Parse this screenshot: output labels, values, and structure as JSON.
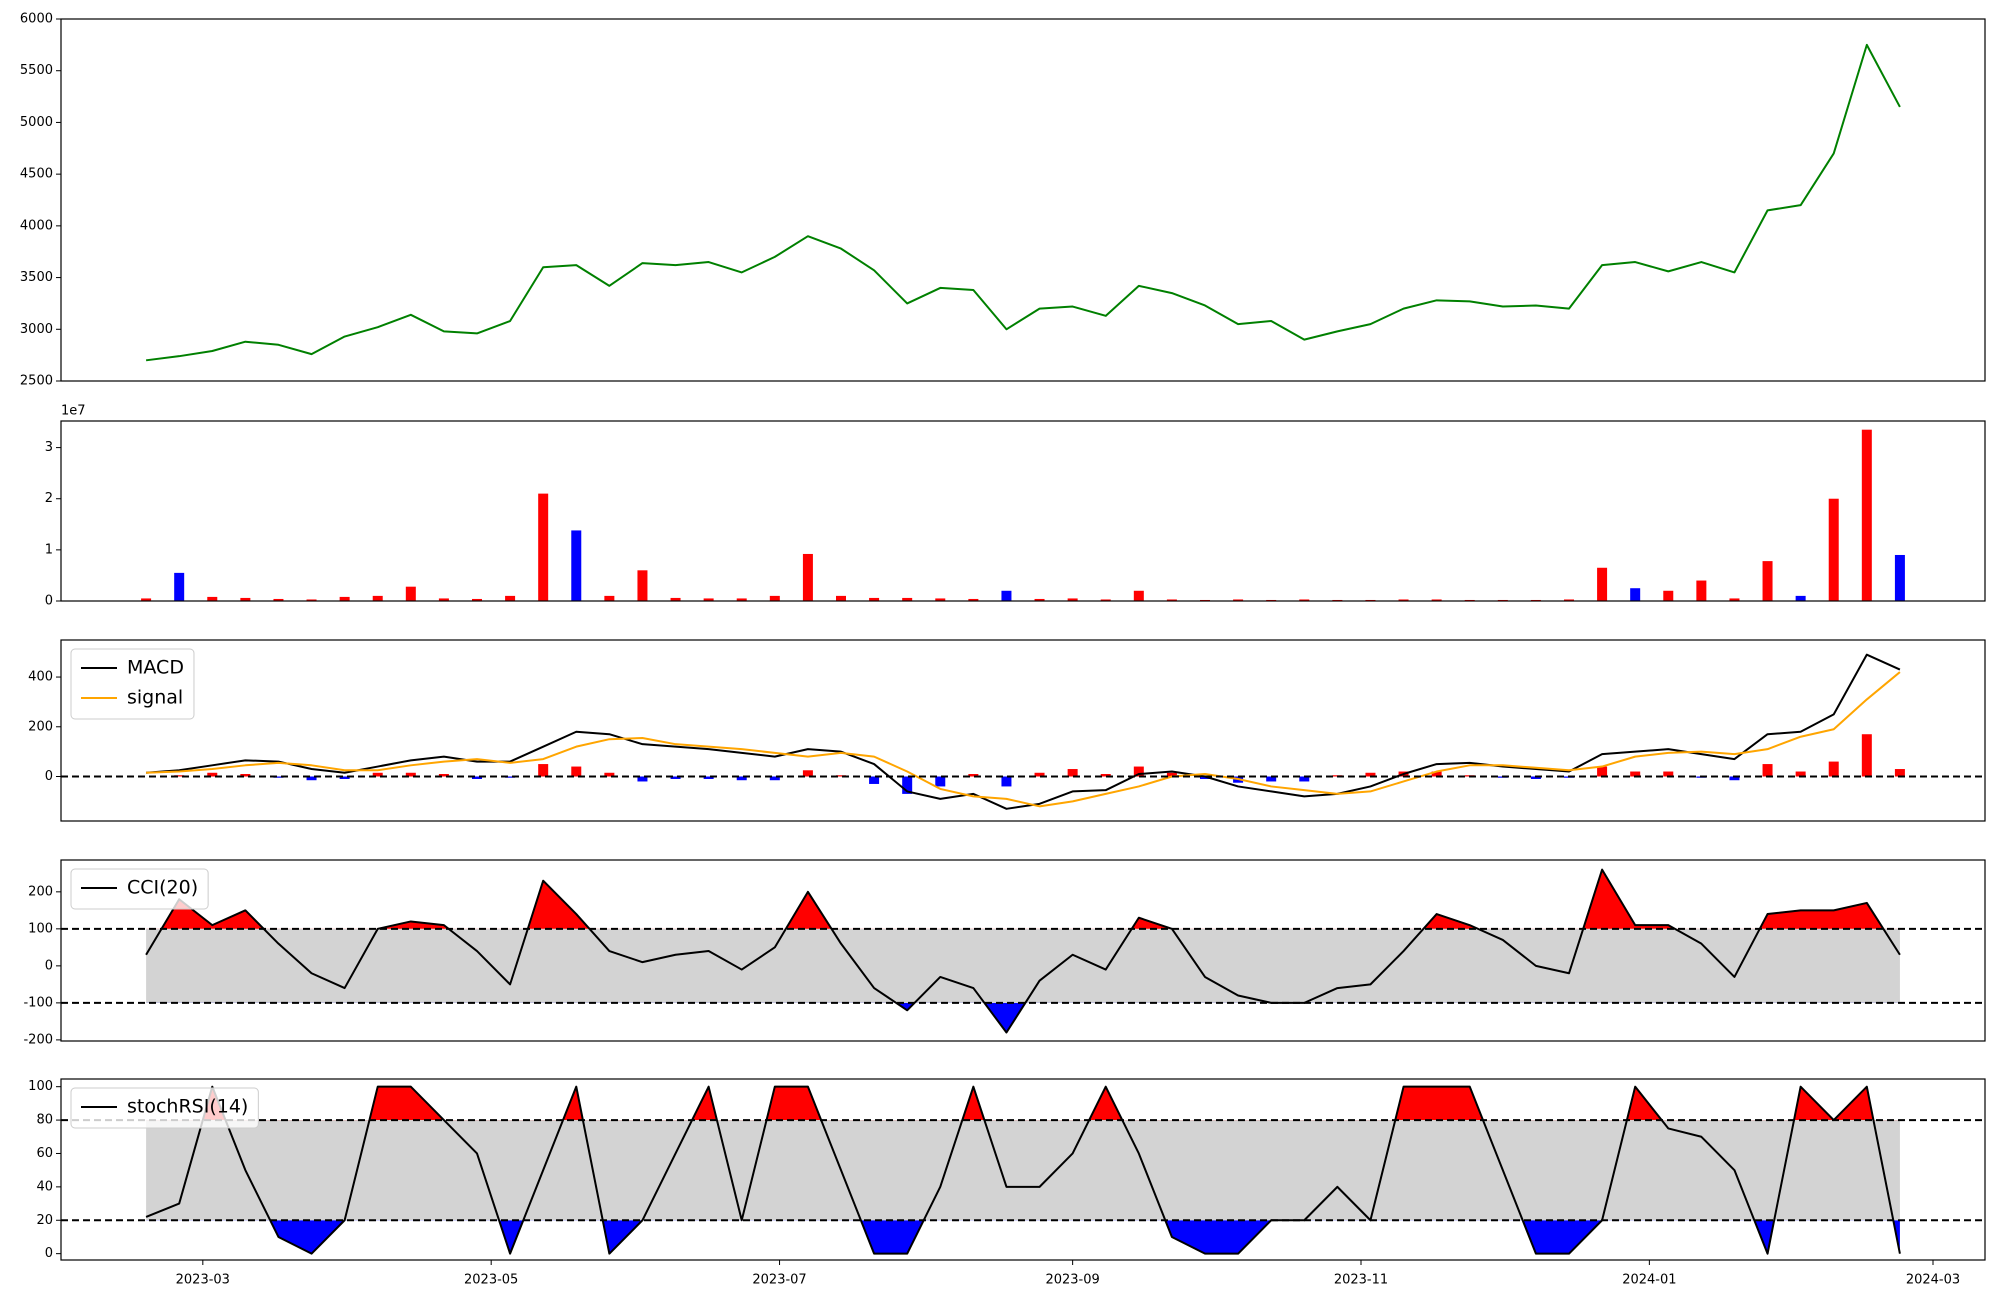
{
  "chart_data": [
    {
      "type": "line",
      "x": [
        "2023-02-17",
        "2023-02-24",
        "2023-03-03",
        "2023-03-10",
        "2023-03-17",
        "2023-03-24",
        "2023-03-31",
        "2023-04-07",
        "2023-04-14",
        "2023-04-21",
        "2023-04-28",
        "2023-05-05",
        "2023-05-12",
        "2023-05-19",
        "2023-05-26",
        "2023-06-02",
        "2023-06-09",
        "2023-06-16",
        "2023-06-23",
        "2023-06-30",
        "2023-07-07",
        "2023-07-14",
        "2023-07-21",
        "2023-07-28",
        "2023-08-04",
        "2023-08-11",
        "2023-08-18",
        "2023-08-25",
        "2023-09-01",
        "2023-09-08",
        "2023-09-15",
        "2023-09-22",
        "2023-09-29",
        "2023-10-06",
        "2023-10-13",
        "2023-10-20",
        "2023-10-27",
        "2023-11-03",
        "2023-11-10",
        "2023-11-17",
        "2023-11-24",
        "2023-12-01",
        "2023-12-08",
        "2023-12-15",
        "2023-12-22",
        "2023-12-29",
        "2024-01-05",
        "2024-01-12",
        "2024-01-19",
        "2024-01-26",
        "2024-02-02",
        "2024-02-09",
        "2024-02-16",
        "2024-02-23"
      ],
      "xlim": [
        "2023-01-30",
        "2024-03-12"
      ],
      "series": [
        {
          "type": "line",
          "color": "#008000",
          "values": [
            2700,
            2740,
            2790,
            2880,
            2850,
            2760,
            2930,
            3020,
            3140,
            2980,
            2960,
            3080,
            3600,
            3620,
            3420,
            3640,
            3620,
            3650,
            3550,
            3700,
            3900,
            3780,
            3570,
            3250,
            3400,
            3380,
            3000,
            3200,
            3220,
            3130,
            3420,
            3350,
            3230,
            3050,
            3080,
            2900,
            2980,
            3050,
            3200,
            3280,
            3270,
            3220,
            3230,
            3200,
            3620,
            3650,
            3560,
            3650,
            3550,
            4150,
            4200,
            4700,
            5750,
            5150
          ]
        }
      ],
      "ylim": [
        2500,
        6000
      ],
      "yticks": [
        2500,
        3000,
        3500,
        4000,
        4500,
        5000,
        5500,
        6000
      ]
    },
    {
      "type": "bar",
      "x": [
        "2023-02-17",
        "2023-02-24",
        "2023-03-03",
        "2023-03-10",
        "2023-03-17",
        "2023-03-24",
        "2023-03-31",
        "2023-04-07",
        "2023-04-14",
        "2023-04-21",
        "2023-04-28",
        "2023-05-05",
        "2023-05-12",
        "2023-05-19",
        "2023-05-26",
        "2023-06-02",
        "2023-06-09",
        "2023-06-16",
        "2023-06-23",
        "2023-06-30",
        "2023-07-07",
        "2023-07-14",
        "2023-07-21",
        "2023-07-28",
        "2023-08-04",
        "2023-08-11",
        "2023-08-18",
        "2023-08-25",
        "2023-09-01",
        "2023-09-08",
        "2023-09-15",
        "2023-09-22",
        "2023-09-29",
        "2023-10-06",
        "2023-10-13",
        "2023-10-20",
        "2023-10-27",
        "2023-11-03",
        "2023-11-10",
        "2023-11-17",
        "2023-11-24",
        "2023-12-01",
        "2023-12-08",
        "2023-12-15",
        "2023-12-22",
        "2023-12-29",
        "2024-01-05",
        "2024-01-12",
        "2024-01-19",
        "2024-01-26",
        "2024-02-02",
        "2024-02-09",
        "2024-02-16",
        "2024-02-23"
      ],
      "xlim": [
        "2023-01-30",
        "2024-03-12"
      ],
      "offset_label": "1e7",
      "series": [
        {
          "type": "bar",
          "values": [
            0.05,
            0.55,
            0.08,
            0.06,
            0.04,
            0.03,
            0.08,
            0.1,
            0.28,
            0.05,
            0.04,
            0.1,
            2.1,
            1.38,
            0.1,
            0.6,
            0.06,
            0.05,
            0.05,
            0.1,
            0.92,
            0.1,
            0.06,
            0.06,
            0.05,
            0.04,
            0.2,
            0.04,
            0.05,
            0.03,
            0.2,
            0.03,
            0.02,
            0.03,
            0.02,
            0.03,
            0.02,
            0.02,
            0.03,
            0.03,
            0.02,
            0.02,
            0.02,
            0.03,
            0.65,
            0.25,
            0.2,
            0.4,
            0.05,
            0.78,
            0.1,
            2.0,
            3.35,
            0.9
          ],
          "colors": [
            "#ff0000",
            "#0000ff",
            "#ff0000",
            "#ff0000",
            "#ff0000",
            "#ff0000",
            "#ff0000",
            "#ff0000",
            "#ff0000",
            "#ff0000",
            "#ff0000",
            "#ff0000",
            "#ff0000",
            "#0000ff",
            "#ff0000",
            "#ff0000",
            "#ff0000",
            "#ff0000",
            "#ff0000",
            "#ff0000",
            "#ff0000",
            "#ff0000",
            "#ff0000",
            "#ff0000",
            "#ff0000",
            "#ff0000",
            "#0000ff",
            "#ff0000",
            "#ff0000",
            "#ff0000",
            "#ff0000",
            "#ff0000",
            "#ff0000",
            "#ff0000",
            "#ff0000",
            "#ff0000",
            "#ff0000",
            "#ff0000",
            "#ff0000",
            "#ff0000",
            "#ff0000",
            "#ff0000",
            "#ff0000",
            "#ff0000",
            "#ff0000",
            "#0000ff",
            "#ff0000",
            "#ff0000",
            "#ff0000",
            "#ff0000",
            "#0000ff",
            "#ff0000",
            "#ff0000",
            "#0000ff"
          ]
        }
      ],
      "ylim": [
        0,
        3.52
      ],
      "yticks": [
        0,
        1,
        2,
        3
      ]
    },
    {
      "type": "combo",
      "x": [
        "2023-02-17",
        "2023-02-24",
        "2023-03-03",
        "2023-03-10",
        "2023-03-17",
        "2023-03-24",
        "2023-03-31",
        "2023-04-07",
        "2023-04-14",
        "2023-04-21",
        "2023-04-28",
        "2023-05-05",
        "2023-05-12",
        "2023-05-19",
        "2023-05-26",
        "2023-06-02",
        "2023-06-09",
        "2023-06-16",
        "2023-06-23",
        "2023-06-30",
        "2023-07-07",
        "2023-07-14",
        "2023-07-21",
        "2023-07-28",
        "2023-08-04",
        "2023-08-11",
        "2023-08-18",
        "2023-08-25",
        "2023-09-01",
        "2023-09-08",
        "2023-09-15",
        "2023-09-22",
        "2023-09-29",
        "2023-10-06",
        "2023-10-13",
        "2023-10-20",
        "2023-10-27",
        "2023-11-03",
        "2023-11-10",
        "2023-11-17",
        "2023-11-24",
        "2023-12-01",
        "2023-12-08",
        "2023-12-15",
        "2023-12-22",
        "2023-12-29",
        "2024-01-05",
        "2024-01-12",
        "2024-01-19",
        "2024-01-26",
        "2024-02-02",
        "2024-02-09",
        "2024-02-16",
        "2024-02-23"
      ],
      "xlim": [
        "2023-01-30",
        "2024-03-12"
      ],
      "hlines": [
        0
      ],
      "legend": "upper left",
      "series": [
        {
          "type": "bar",
          "pos_color": "#ff0000",
          "neg_color": "#0000ff",
          "values": [
            0,
            5,
            15,
            10,
            -5,
            -15,
            -10,
            15,
            15,
            10,
            -10,
            -5,
            50,
            40,
            15,
            -20,
            -10,
            -10,
            -15,
            -15,
            25,
            5,
            -30,
            -70,
            -40,
            10,
            -40,
            15,
            30,
            10,
            40,
            15,
            -10,
            -25,
            -20,
            -20,
            5,
            15,
            20,
            20,
            5,
            -5,
            -10,
            -5,
            40,
            20,
            20,
            -5,
            -15,
            50,
            20,
            60,
            170,
            30
          ]
        },
        {
          "type": "line",
          "name": "MACD",
          "color": "#000000",
          "values": [
            15,
            25,
            45,
            65,
            60,
            30,
            15,
            40,
            65,
            80,
            60,
            60,
            120,
            180,
            170,
            130,
            120,
            110,
            95,
            80,
            110,
            100,
            50,
            -60,
            -90,
            -70,
            -130,
            -110,
            -60,
            -55,
            10,
            20,
            0,
            -40,
            -60,
            -80,
            -70,
            -40,
            10,
            50,
            55,
            40,
            30,
            20,
            90,
            100,
            110,
            90,
            70,
            170,
            180,
            250,
            490,
            430
          ]
        },
        {
          "type": "line",
          "name": "signal",
          "color": "#ffa500",
          "values": [
            15,
            20,
            30,
            45,
            55,
            45,
            25,
            25,
            45,
            60,
            70,
            55,
            70,
            120,
            150,
            155,
            130,
            120,
            110,
            95,
            80,
            95,
            80,
            20,
            -50,
            -80,
            -90,
            -120,
            -100,
            -70,
            -40,
            0,
            10,
            -10,
            -40,
            -55,
            -70,
            -60,
            -20,
            20,
            45,
            45,
            35,
            25,
            40,
            80,
            95,
            100,
            90,
            110,
            160,
            190,
            310,
            420
          ]
        }
      ],
      "ylim": [
        -179,
        549
      ],
      "yticks": [
        0,
        200,
        400
      ]
    },
    {
      "type": "line",
      "x": [
        "2023-02-17",
        "2023-02-24",
        "2023-03-03",
        "2023-03-10",
        "2023-03-17",
        "2023-03-24",
        "2023-03-31",
        "2023-04-07",
        "2023-04-14",
        "2023-04-21",
        "2023-04-28",
        "2023-05-05",
        "2023-05-12",
        "2023-05-19",
        "2023-05-26",
        "2023-06-02",
        "2023-06-09",
        "2023-06-16",
        "2023-06-23",
        "2023-06-30",
        "2023-07-07",
        "2023-07-14",
        "2023-07-21",
        "2023-07-28",
        "2023-08-04",
        "2023-08-11",
        "2023-08-18",
        "2023-08-25",
        "2023-09-01",
        "2023-09-08",
        "2023-09-15",
        "2023-09-22",
        "2023-09-29",
        "2023-10-06",
        "2023-10-13",
        "2023-10-20",
        "2023-10-27",
        "2023-11-03",
        "2023-11-10",
        "2023-11-17",
        "2023-11-24",
        "2023-12-01",
        "2023-12-08",
        "2023-12-15",
        "2023-12-22",
        "2023-12-29",
        "2024-01-05",
        "2024-01-12",
        "2024-01-19",
        "2024-01-26",
        "2024-02-02",
        "2024-02-09",
        "2024-02-16",
        "2024-02-23"
      ],
      "xlim": [
        "2023-01-30",
        "2024-03-12"
      ],
      "hlines": [
        -100,
        100
      ],
      "band": [
        -100,
        100
      ],
      "fill_colors": {
        "band": "#d3d3d3",
        "above": "#ff0000",
        "below": "#0000ff"
      },
      "legend": "upper left",
      "series": [
        {
          "type": "line",
          "name": "CCI(20)",
          "color": "#000000",
          "values": [
            30,
            180,
            110,
            150,
            60,
            -20,
            -60,
            100,
            120,
            110,
            40,
            -50,
            230,
            140,
            40,
            10,
            30,
            40,
            -10,
            50,
            200,
            60,
            -60,
            -120,
            -30,
            -60,
            -180,
            -40,
            30,
            -10,
            130,
            100,
            -30,
            -80,
            -100,
            -100,
            -60,
            -50,
            40,
            140,
            110,
            70,
            0,
            -20,
            260,
            110,
            110,
            60,
            -30,
            140,
            150,
            150,
            170,
            30
          ]
        }
      ],
      "ylim": [
        -203,
        286
      ],
      "yticks": [
        -200,
        -100,
        0,
        100,
        200
      ]
    },
    {
      "type": "line",
      "x": [
        "2023-02-17",
        "2023-02-24",
        "2023-03-03",
        "2023-03-10",
        "2023-03-17",
        "2023-03-24",
        "2023-03-31",
        "2023-04-07",
        "2023-04-14",
        "2023-04-21",
        "2023-04-28",
        "2023-05-05",
        "2023-05-12",
        "2023-05-19",
        "2023-05-26",
        "2023-06-02",
        "2023-06-09",
        "2023-06-16",
        "2023-06-23",
        "2023-06-30",
        "2023-07-07",
        "2023-07-14",
        "2023-07-21",
        "2023-07-28",
        "2023-08-04",
        "2023-08-11",
        "2023-08-18",
        "2023-08-25",
        "2023-09-01",
        "2023-09-08",
        "2023-09-15",
        "2023-09-22",
        "2023-09-29",
        "2023-10-06",
        "2023-10-13",
        "2023-10-20",
        "2023-10-27",
        "2023-11-03",
        "2023-11-10",
        "2023-11-17",
        "2023-11-24",
        "2023-12-01",
        "2023-12-08",
        "2023-12-15",
        "2023-12-22",
        "2023-12-29",
        "2024-01-05",
        "2024-01-12",
        "2024-01-19",
        "2024-01-26",
        "2024-02-02",
        "2024-02-09",
        "2024-02-16",
        "2024-02-23"
      ],
      "xlim": [
        "2023-01-30",
        "2024-03-12"
      ],
      "xticks": [
        {
          "value": "2023-03-01",
          "label": "2023-03"
        },
        {
          "value": "2023-05-01",
          "label": "2023-05"
        },
        {
          "value": "2023-07-01",
          "label": "2023-07"
        },
        {
          "value": "2023-09-01",
          "label": "2023-09"
        },
        {
          "value": "2023-11-01",
          "label": "2023-11"
        },
        {
          "value": "2024-01-01",
          "label": "2024-01"
        },
        {
          "value": "2024-03-01",
          "label": "2024-03"
        }
      ],
      "hlines": [
        20,
        80
      ],
      "band": [
        20,
        80
      ],
      "fill_colors": {
        "band": "#d3d3d3",
        "above": "#ff0000",
        "below": "#0000ff"
      },
      "legend": "upper left",
      "series": [
        {
          "type": "line",
          "name": "stochRSI(14)",
          "color": "#000000",
          "values": [
            22,
            30,
            100,
            50,
            10,
            0,
            20,
            100,
            100,
            80,
            60,
            0,
            50,
            100,
            0,
            20,
            60,
            100,
            20,
            100,
            100,
            50,
            0,
            0,
            40,
            100,
            40,
            40,
            60,
            100,
            60,
            10,
            0,
            0,
            20,
            20,
            40,
            20,
            100,
            100,
            100,
            50,
            0,
            0,
            20,
            100,
            75,
            70,
            50,
            0,
            100,
            80,
            100,
            0
          ]
        }
      ],
      "ylim": [
        -3.8,
        104.6
      ],
      "yticks": [
        0,
        20,
        40,
        60,
        80,
        100
      ]
    }
  ]
}
